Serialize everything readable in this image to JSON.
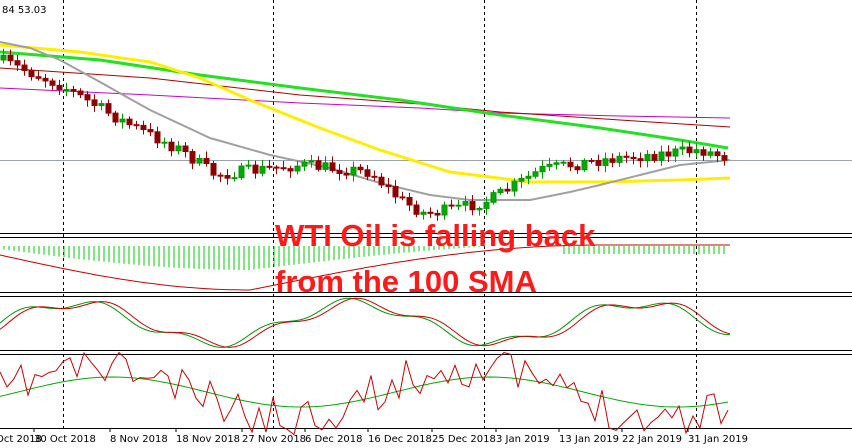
{
  "header": {
    "label": "84 53.03"
  },
  "x_axis": {
    "labels": [
      "Oct 2018",
      "30 Oct 2018",
      "8 Nov 2018",
      "18 Nov 2018",
      "27 Nov 2018",
      "6 Dec 2018",
      "16 Dec 2018",
      "25 Dec 2018",
      "3 Jan 2019",
      "13 Jan 2019",
      "22 Jan 2019",
      "31 Jan 2019"
    ]
  },
  "annotation": {
    "lines": [
      "WTI Oil is falling back",
      "from the 100 SMA"
    ]
  }
}
